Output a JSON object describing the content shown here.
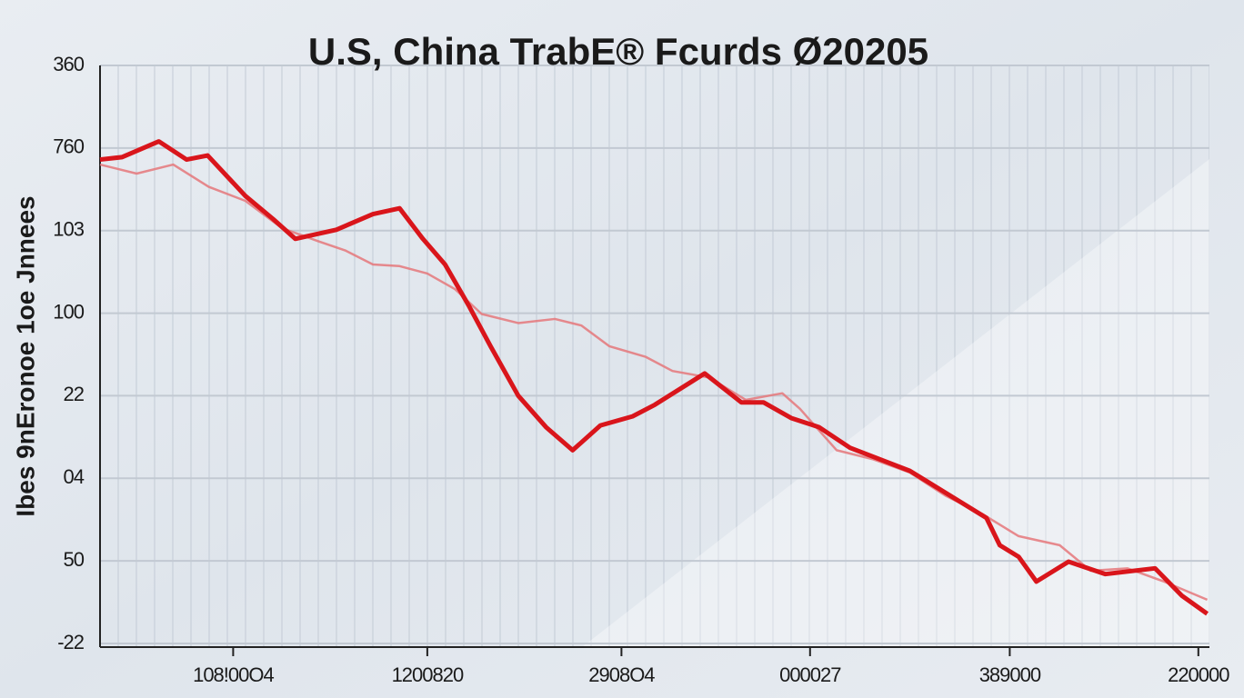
{
  "chart_data": {
    "type": "line",
    "title": "U.S, China TrabE® Fcurds Ø20205",
    "y_label": "Ibes 9nEronoe 1oe Jnnees",
    "xlim": [
      0,
      100
    ],
    "xticks": [
      {
        "value": 12,
        "label": "108!00O4"
      },
      {
        "value": 29.5,
        "label": "1200820"
      },
      {
        "value": 47,
        "label": "2908O4"
      },
      {
        "value": 64,
        "label": "000027"
      },
      {
        "value": 82,
        "label": "389000"
      },
      {
        "value": 99,
        "label": "220000"
      }
    ],
    "ylim": [
      0,
      7
    ],
    "yticks": [
      {
        "value": 0,
        "label": "-22"
      },
      {
        "value": 1,
        "label": "50"
      },
      {
        "value": 2,
        "label": "04"
      },
      {
        "value": 3,
        "label": "22"
      },
      {
        "value": 4,
        "label": "100"
      },
      {
        "value": 5,
        "label": "103"
      },
      {
        "value": 6,
        "label": "760"
      },
      {
        "value": 7,
        "label": "360"
      }
    ],
    "grid": true,
    "series": [
      {
        "color": "#d9151b",
        "x": [
          0,
          2.0,
          5.3,
          7.8,
          9.7,
          13.1,
          15.6,
          17.6,
          21.3,
          24.6,
          27.0,
          29.1,
          31.1,
          33.2,
          35.2,
          37.7,
          40.2,
          42.6,
          45.1,
          48.0,
          50.0,
          54.5,
          57.8,
          59.8,
          62.3,
          64.8,
          67.6,
          73.0,
          79.9,
          81.1,
          82.8,
          84.4,
          87.3,
          90.6,
          95.1,
          97.5,
          99.8
        ],
        "values": [
          5.86,
          5.89,
          6.08,
          5.86,
          5.91,
          5.42,
          5.14,
          4.9,
          5.01,
          5.2,
          5.27,
          4.9,
          4.59,
          4.1,
          3.6,
          3.0,
          2.62,
          2.34,
          2.64,
          2.75,
          2.89,
          3.27,
          2.92,
          2.92,
          2.73,
          2.62,
          2.37,
          2.09,
          1.52,
          1.19,
          1.05,
          0.75,
          0.99,
          0.84,
          0.91,
          0.58,
          0.36
        ]
      },
      {
        "color": "#e5777a",
        "x": [
          0,
          3.3,
          6.6,
          9.8,
          13.1,
          16.4,
          19.7,
          22.1,
          24.6,
          27.0,
          29.5,
          32.0,
          34.4,
          37.7,
          41.0,
          43.4,
          45.9,
          49.2,
          51.6,
          54.9,
          58.2,
          61.5,
          63.1,
          66.4,
          69.7,
          73.0,
          76.2,
          79.5,
          82.8,
          86.5,
          89.3,
          92.6,
          95.9,
          99.8
        ],
        "values": [
          5.8,
          5.69,
          5.8,
          5.53,
          5.36,
          5.03,
          4.87,
          4.76,
          4.59,
          4.57,
          4.48,
          4.29,
          3.99,
          3.88,
          3.93,
          3.85,
          3.6,
          3.47,
          3.3,
          3.22,
          2.95,
          3.03,
          2.84,
          2.34,
          2.23,
          2.07,
          1.79,
          1.57,
          1.3,
          1.19,
          0.88,
          0.91,
          0.75,
          0.53
        ]
      }
    ]
  }
}
